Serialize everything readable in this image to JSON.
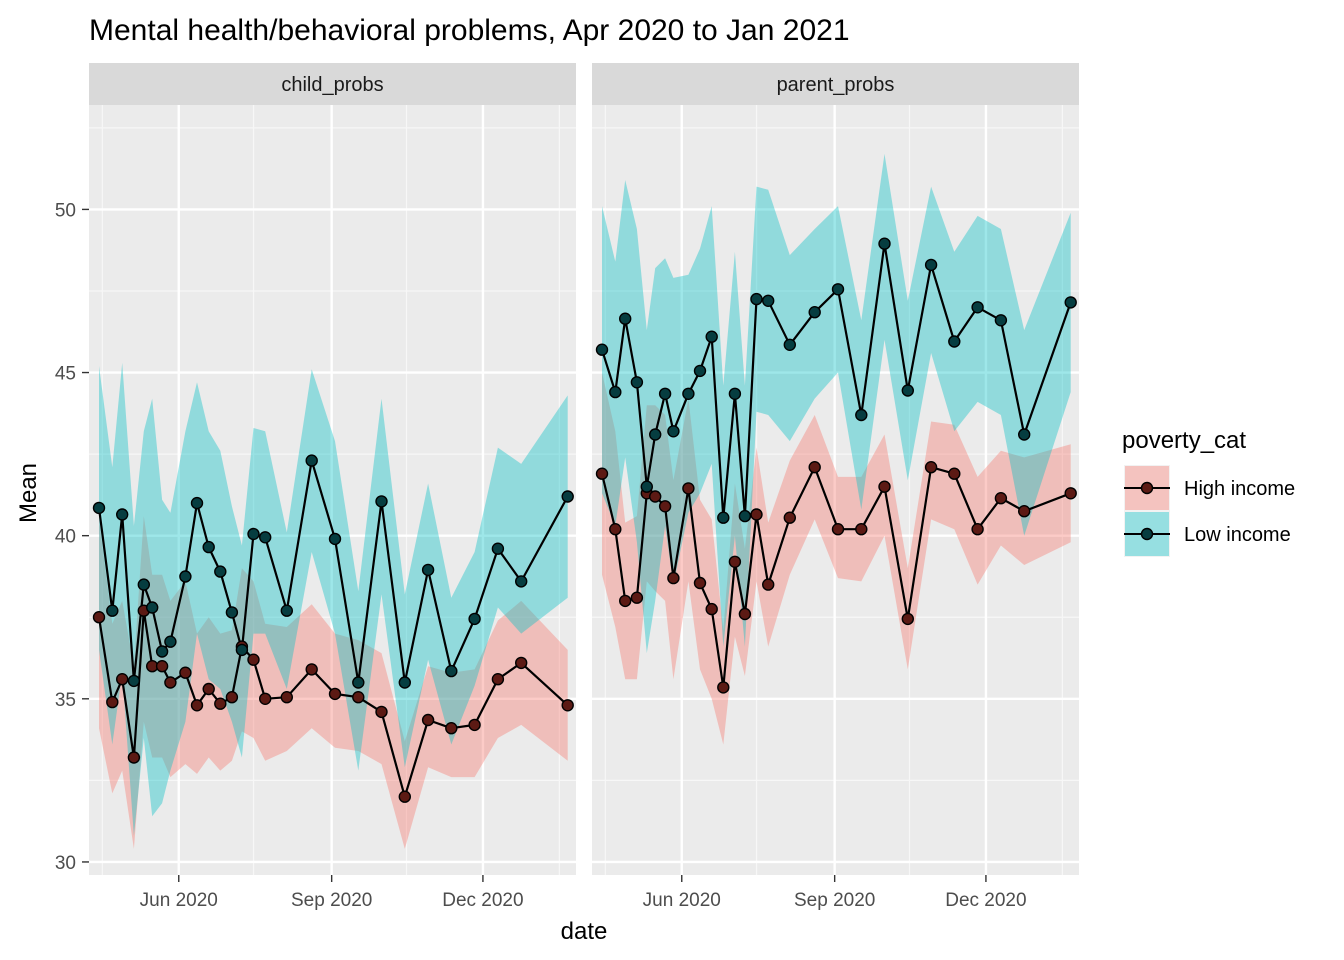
{
  "chart_data": {
    "type": "line",
    "title": "Mental health/behavioral problems, Apr 2020 to Jan 2021",
    "xlabel": "date",
    "ylabel": "Mean",
    "x_ticks": [
      "2020-06-01",
      "2020-09-01",
      "2020-12-01"
    ],
    "x_tick_labels": [
      "Jun 2020",
      "Sep 2020",
      "Dec 2020"
    ],
    "xlim": [
      "2020-04-08",
      "2021-01-26"
    ],
    "ylim": [
      29.6,
      53.2
    ],
    "y_ticks": [
      30,
      35,
      40,
      45,
      50
    ],
    "y_tick_labels": [
      "30",
      "35",
      "40",
      "45",
      "50"
    ],
    "grid": true,
    "legend": {
      "title": "poverty_cat",
      "position": "right",
      "entries": [
        {
          "name": "High income",
          "fill": "#F8766D",
          "point": "#5c1a14"
        },
        {
          "name": "Low income",
          "fill": "#00BFC4",
          "point": "#063d40"
        }
      ]
    },
    "panels": [
      {
        "name": "child_probs",
        "series": [
          {
            "name": "High income",
            "x": [
              "2020-04-14",
              "2020-04-22",
              "2020-04-28",
              "2020-05-05",
              "2020-05-11",
              "2020-05-16",
              "2020-05-22",
              "2020-05-27",
              "2020-06-05",
              "2020-06-12",
              "2020-06-19",
              "2020-06-26",
              "2020-07-03",
              "2020-07-09",
              "2020-07-16",
              "2020-07-23",
              "2020-08-05",
              "2020-08-20",
              "2020-09-03",
              "2020-09-17",
              "2020-10-01",
              "2020-10-15",
              "2020-10-29",
              "2020-11-12",
              "2020-11-26",
              "2020-12-10",
              "2020-12-24",
              "2021-01-21"
            ],
            "values": [
              37.5,
              34.9,
              35.6,
              33.2,
              37.7,
              36.0,
              36.0,
              35.5,
              35.8,
              34.8,
              35.3,
              34.85,
              35.05,
              36.6,
              36.2,
              35.0,
              35.05,
              35.9,
              35.15,
              35.05,
              34.6,
              32.0,
              34.35,
              34.1,
              34.2,
              35.6,
              36.1,
              34.8
            ],
            "lower": [
              34.1,
              32.1,
              32.8,
              30.4,
              34.3,
              33.2,
              33.2,
              32.6,
              33.0,
              32.7,
              33.2,
              32.8,
              33.1,
              34.0,
              33.8,
              33.1,
              33.4,
              34.1,
              33.5,
              33.4,
              33.0,
              30.4,
              32.9,
              32.6,
              32.6,
              33.8,
              34.2,
              33.1
            ],
            "upper": [
              40.5,
              37.3,
              38.0,
              36.0,
              40.6,
              38.8,
              38.8,
              38.0,
              38.6,
              37.0,
              37.5,
              37.0,
              37.1,
              39.0,
              38.6,
              37.3,
              37.2,
              37.9,
              37.0,
              36.8,
              36.4,
              33.7,
              36.0,
              35.8,
              35.9,
              37.4,
              38.0,
              36.5
            ]
          },
          {
            "name": "Low income",
            "x": [
              "2020-04-14",
              "2020-04-22",
              "2020-04-28",
              "2020-05-05",
              "2020-05-11",
              "2020-05-16",
              "2020-05-22",
              "2020-05-27",
              "2020-06-05",
              "2020-06-12",
              "2020-06-19",
              "2020-06-26",
              "2020-07-03",
              "2020-07-09",
              "2020-07-16",
              "2020-07-23",
              "2020-08-05",
              "2020-08-20",
              "2020-09-03",
              "2020-09-17",
              "2020-10-01",
              "2020-10-15",
              "2020-10-29",
              "2020-11-12",
              "2020-11-26",
              "2020-12-10",
              "2020-12-24",
              "2021-01-21"
            ],
            "values": [
              40.85,
              37.7,
              40.65,
              35.55,
              38.5,
              37.8,
              36.45,
              36.75,
              38.75,
              41.0,
              39.65,
              38.9,
              37.65,
              36.5,
              40.05,
              39.95,
              37.7,
              42.3,
              39.9,
              35.5,
              41.05,
              35.5,
              38.95,
              35.85,
              37.45,
              39.6,
              38.6,
              41.2
            ],
            "lower": [
              36.5,
              33.6,
              35.8,
              30.8,
              33.8,
              31.4,
              31.8,
              32.8,
              34.3,
              37.0,
              35.6,
              35.3,
              34.3,
              33.2,
              37.0,
              37.0,
              35.3,
              39.5,
              37.0,
              32.8,
              38.2,
              32.9,
              36.2,
              33.6,
              35.4,
              37.8,
              37.0,
              38.1
            ],
            "upper": [
              45.2,
              42.1,
              45.3,
              40.3,
              43.2,
              44.2,
              41.1,
              40.7,
              43.2,
              44.7,
              43.2,
              42.6,
              40.9,
              39.7,
              43.3,
              43.2,
              40.1,
              45.1,
              42.9,
              38.3,
              44.2,
              38.2,
              41.6,
              38.1,
              39.5,
              42.7,
              42.2,
              44.3
            ]
          }
        ]
      },
      {
        "name": "parent_probs",
        "series": [
          {
            "name": "High income",
            "x": [
              "2020-04-14",
              "2020-04-22",
              "2020-04-28",
              "2020-05-05",
              "2020-05-11",
              "2020-05-16",
              "2020-05-22",
              "2020-05-27",
              "2020-06-05",
              "2020-06-12",
              "2020-06-19",
              "2020-06-26",
              "2020-07-03",
              "2020-07-09",
              "2020-07-16",
              "2020-07-23",
              "2020-08-05",
              "2020-08-20",
              "2020-09-03",
              "2020-09-17",
              "2020-10-01",
              "2020-10-15",
              "2020-10-29",
              "2020-11-12",
              "2020-11-26",
              "2020-12-10",
              "2020-12-24",
              "2021-01-21"
            ],
            "values": [
              41.9,
              40.2,
              38.0,
              38.1,
              41.3,
              41.2,
              40.9,
              38.7,
              41.45,
              38.55,
              37.75,
              35.35,
              39.2,
              37.6,
              40.65,
              38.5,
              40.55,
              42.1,
              40.2,
              40.2,
              41.5,
              37.45,
              42.1,
              41.9,
              40.2,
              41.15,
              40.75,
              41.3
            ],
            "lower": [
              38.8,
              37.2,
              35.6,
              35.6,
              38.6,
              38.3,
              38.0,
              35.6,
              38.6,
              35.9,
              35.0,
              33.6,
              36.9,
              35.7,
              38.6,
              36.6,
              38.8,
              40.5,
              38.7,
              38.6,
              40.0,
              35.9,
              40.5,
              40.2,
              38.5,
              39.7,
              39.1,
              39.8
            ],
            "upper": [
              45.0,
              43.2,
              40.4,
              40.6,
              44.0,
              44.0,
              43.7,
              41.7,
              44.2,
              41.1,
              40.5,
              37.1,
              41.6,
              39.6,
              42.7,
              40.4,
              42.3,
              43.7,
              41.8,
              41.8,
              43.1,
              39.0,
              43.5,
              43.4,
              41.8,
              42.6,
              42.4,
              42.8
            ]
          },
          {
            "name": "Low income",
            "x": [
              "2020-04-14",
              "2020-04-22",
              "2020-04-28",
              "2020-05-05",
              "2020-05-11",
              "2020-05-16",
              "2020-05-22",
              "2020-05-27",
              "2020-06-05",
              "2020-06-12",
              "2020-06-19",
              "2020-06-26",
              "2020-07-03",
              "2020-07-09",
              "2020-07-16",
              "2020-07-23",
              "2020-08-05",
              "2020-08-20",
              "2020-09-03",
              "2020-09-17",
              "2020-10-01",
              "2020-10-15",
              "2020-10-29",
              "2020-11-12",
              "2020-11-26",
              "2020-12-10",
              "2020-12-24",
              "2021-01-21"
            ],
            "values": [
              45.7,
              44.4,
              46.65,
              44.7,
              41.5,
              43.1,
              44.35,
              43.2,
              44.35,
              45.05,
              46.1,
              40.55,
              44.35,
              40.6,
              47.25,
              47.2,
              45.85,
              46.85,
              47.55,
              43.7,
              48.95,
              44.45,
              48.3,
              45.95,
              47.0,
              46.6,
              43.1,
              47.15
            ],
            "lower": [
              41.3,
              40.3,
              42.4,
              39.8,
              36.4,
              38.0,
              40.3,
              38.5,
              40.7,
              41.3,
              42.2,
              36.6,
              40.0,
              36.6,
              43.8,
              43.7,
              42.9,
              44.2,
              45.0,
              40.8,
              46.0,
              41.7,
              45.6,
              43.2,
              44.1,
              43.7,
              40.0,
              44.4
            ],
            "upper": [
              50.1,
              48.4,
              50.9,
              49.4,
              46.3,
              48.2,
              48.5,
              47.9,
              48.0,
              48.8,
              50.1,
              44.6,
              48.7,
              44.6,
              50.7,
              50.6,
              48.6,
              49.4,
              50.1,
              46.6,
              51.7,
              47.2,
              50.7,
              48.7,
              49.8,
              49.4,
              46.3,
              49.9
            ]
          }
        ]
      }
    ]
  }
}
